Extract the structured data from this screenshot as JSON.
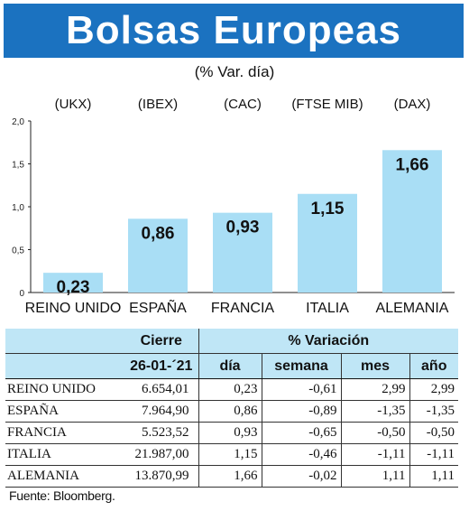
{
  "title": "Bolsas Europeas",
  "subtitle": "(% Var. día)",
  "colors": {
    "banner": "#1b72c0",
    "bar": "#a9def5",
    "table_header": "#bfe6f6"
  },
  "chart_data": {
    "type": "bar",
    "title": "Bolsas Europeas",
    "subtitle": "(% Var. día)",
    "index_labels": [
      "(UKX)",
      "(IBEX)",
      "(CAC)",
      "(FTSE MIB)",
      "(DAX)"
    ],
    "categories": [
      "REINO UNIDO",
      "ESPAÑA",
      "FRANCIA",
      "ITALIA",
      "ALEMANIA"
    ],
    "values": [
      0.23,
      0.86,
      0.93,
      1.15,
      1.66
    ],
    "data_labels": [
      "0,23",
      "0,86",
      "0,93",
      "1,15",
      "1,66"
    ],
    "ylim": [
      0,
      2.0
    ],
    "yticks": [
      0,
      0.5,
      1.0,
      1.5,
      2.0
    ],
    "ytick_labels": [
      "0",
      "0,5",
      "1,0",
      "1,5",
      "2,0"
    ],
    "grid": false
  },
  "table": {
    "group_headers": [
      "Cierre",
      "% Variación"
    ],
    "sub_headers": [
      "26-01-´21",
      "día",
      "semana",
      "mes",
      "año"
    ],
    "rows": [
      {
        "name": "REINO UNIDO",
        "cierre": "6.654,01",
        "dia": "0,23",
        "semana": "-0,61",
        "mes": "2,99",
        "anio": "2,99"
      },
      {
        "name": "ESPAÑA",
        "cierre": "7.964,90",
        "dia": "0,86",
        "semana": "-0,89",
        "mes": "-1,35",
        "anio": "-1,35"
      },
      {
        "name": "FRANCIA",
        "cierre": "5.523,52",
        "dia": "0,93",
        "semana": "-0,65",
        "mes": "-0,50",
        "anio": "-0,50"
      },
      {
        "name": "ITALIA",
        "cierre": "21.987,00",
        "dia": "1,15",
        "semana": "-0,46",
        "mes": "-1,11",
        "anio": "-1,11"
      },
      {
        "name": "ALEMANIA",
        "cierre": "13.870,99",
        "dia": "1,66",
        "semana": "-0,02",
        "mes": "1,11",
        "anio": "1,11"
      }
    ]
  },
  "source": "Fuente: Bloomberg."
}
